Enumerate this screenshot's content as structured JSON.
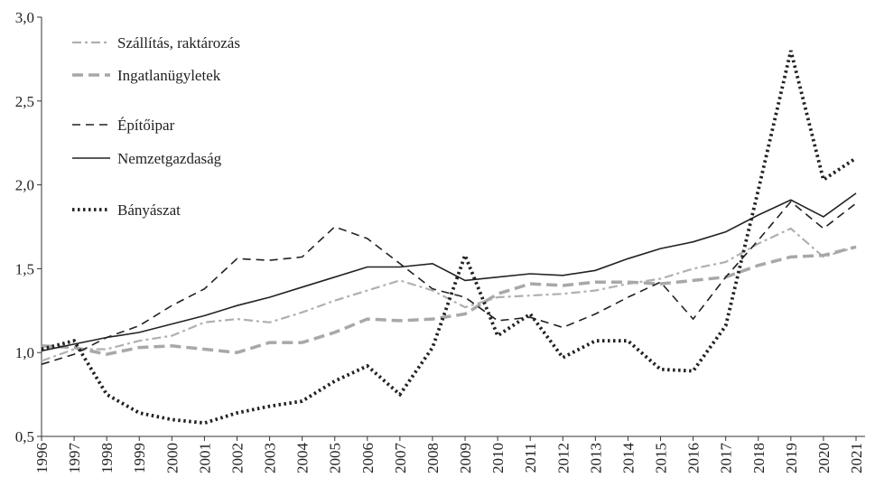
{
  "chart_data": {
    "type": "line",
    "categories": [
      "1996",
      "1997",
      "1998",
      "1999",
      "2000",
      "2001",
      "2002",
      "2003",
      "2004",
      "2005",
      "2006",
      "2007",
      "2008",
      "2009",
      "2010",
      "2011",
      "2012",
      "2013",
      "2014",
      "2015",
      "2016",
      "2017",
      "2018",
      "2019",
      "2020",
      "2021"
    ],
    "ylim": [
      0.5,
      3.0
    ],
    "yticks": [
      {
        "value": 0.5,
        "label": "0,5"
      },
      {
        "value": 1.0,
        "label": "1,0"
      },
      {
        "value": 1.5,
        "label": "1,5"
      },
      {
        "value": 2.0,
        "label": "2,0"
      },
      {
        "value": 2.5,
        "label": "2,5"
      },
      {
        "value": 3.0,
        "label": "3,0"
      }
    ],
    "legend": "upper left",
    "series": [
      {
        "name": "Szállítás, raktározás",
        "color": "#b0b0b0",
        "style": "dashdot",
        "values": [
          0.95,
          1.02,
          1.02,
          1.07,
          1.1,
          1.18,
          1.2,
          1.18,
          1.24,
          1.31,
          1.37,
          1.43,
          1.37,
          1.27,
          1.33,
          1.34,
          1.35,
          1.37,
          1.41,
          1.44,
          1.5,
          1.54,
          1.65,
          1.74,
          1.57,
          1.63
        ]
      },
      {
        "name": "Ingatlanügyletek",
        "color": "#a8a8a8",
        "style": "dashedthick",
        "values": [
          1.04,
          1.03,
          0.99,
          1.03,
          1.04,
          1.02,
          1.0,
          1.06,
          1.06,
          1.12,
          1.2,
          1.19,
          1.2,
          1.23,
          1.35,
          1.41,
          1.4,
          1.42,
          1.42,
          1.41,
          1.43,
          1.45,
          1.52,
          1.57,
          1.58,
          1.63
        ]
      },
      {
        "name": "Építőipar",
        "color": "#222222",
        "style": "dashed",
        "values": [
          0.93,
          0.99,
          1.09,
          1.16,
          1.28,
          1.38,
          1.56,
          1.55,
          1.57,
          1.75,
          1.68,
          1.53,
          1.38,
          1.33,
          1.19,
          1.21,
          1.15,
          1.23,
          1.33,
          1.42,
          1.2,
          1.45,
          1.67,
          1.9,
          1.74,
          1.89
        ]
      },
      {
        "name": "Nemzetgazdaság",
        "color": "#222222",
        "style": "solid",
        "values": [
          1.01,
          1.05,
          1.09,
          1.12,
          1.17,
          1.22,
          1.28,
          1.33,
          1.39,
          1.45,
          1.51,
          1.51,
          1.53,
          1.43,
          1.45,
          1.47,
          1.46,
          1.49,
          1.56,
          1.62,
          1.66,
          1.72,
          1.82,
          1.91,
          1.81,
          1.95
        ]
      },
      {
        "name": "Bányászat",
        "color": "#222222",
        "style": "dotted",
        "values": [
          1.02,
          1.07,
          0.75,
          0.64,
          0.6,
          0.58,
          0.64,
          0.68,
          0.71,
          0.83,
          0.92,
          0.75,
          1.03,
          1.58,
          1.1,
          1.23,
          0.97,
          1.07,
          1.07,
          0.9,
          0.89,
          1.16,
          1.97,
          2.8,
          2.03,
          2.16
        ]
      }
    ]
  }
}
